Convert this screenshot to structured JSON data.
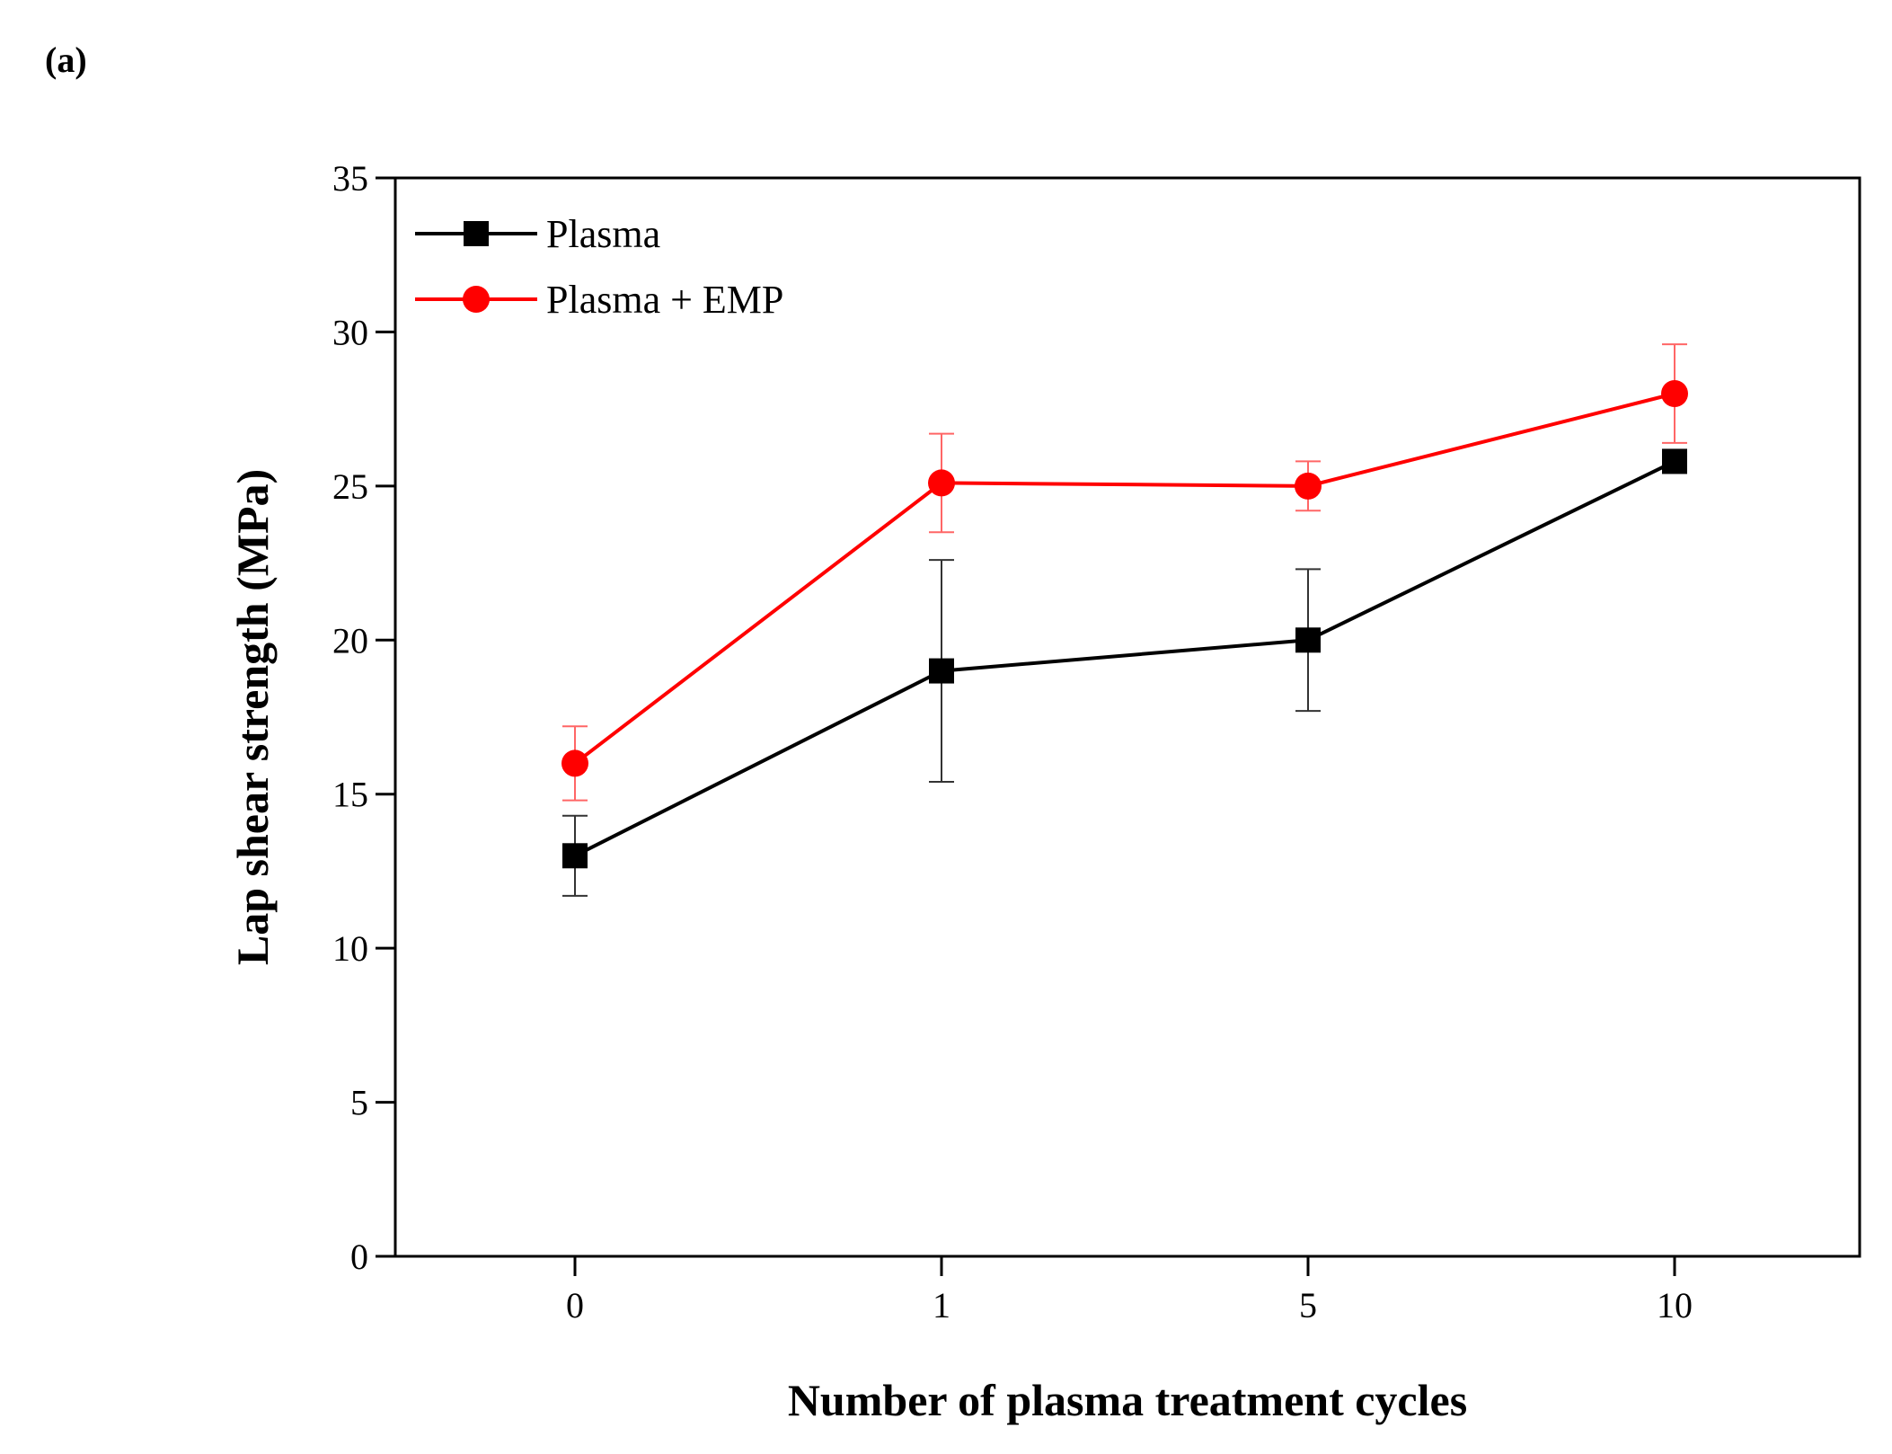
{
  "panel_label": "(a)",
  "chart_data": {
    "type": "line",
    "title": "",
    "xlabel": "Number of plasma treatment cycles",
    "ylabel": "Lap shear strength (MPa)",
    "categories": [
      "0",
      "1",
      "5",
      "10"
    ],
    "ylim": [
      0,
      35
    ],
    "yticks": [
      0,
      5,
      10,
      15,
      20,
      25,
      30,
      35
    ],
    "grid": false,
    "legend_position": "top-left",
    "series": [
      {
        "name": "Plasma",
        "color": "#000000",
        "marker": "square",
        "values": [
          13.0,
          19.0,
          20.0,
          25.8
        ],
        "errors": [
          1.3,
          3.6,
          2.3,
          0.0
        ]
      },
      {
        "name": "Plasma + EMP",
        "color": "#ff0000",
        "marker": "circle",
        "values": [
          16.0,
          25.1,
          25.0,
          28.0
        ],
        "errors": [
          1.2,
          1.6,
          0.8,
          1.6
        ]
      }
    ]
  }
}
